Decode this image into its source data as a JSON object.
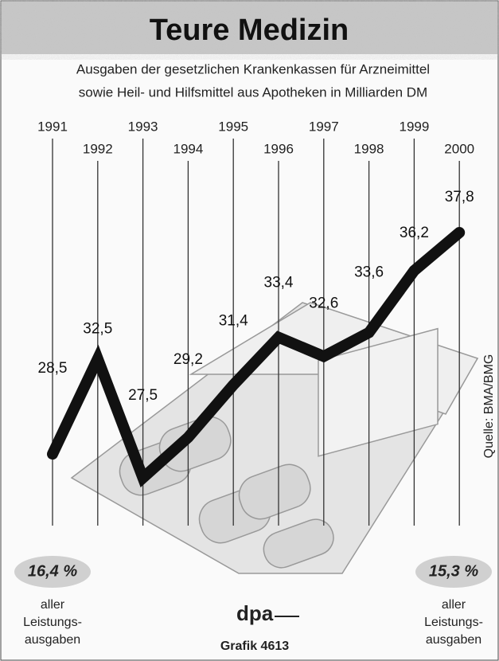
{
  "chart_data": {
    "type": "line",
    "title": "Teure Medizin",
    "subtitle": [
      "Ausgaben der gesetzlichen Krankenkassen für Arzneimittel",
      "sowie Heil- und Hilfsmittel aus Apotheken in Milliarden DM"
    ],
    "categories": [
      "1991",
      "1992",
      "1993",
      "1994",
      "1995",
      "1996",
      "1997",
      "1998",
      "1999",
      "2000"
    ],
    "values": [
      28.5,
      32.5,
      27.5,
      29.2,
      31.4,
      33.4,
      32.6,
      33.6,
      36.2,
      37.8
    ],
    "value_labels": [
      "28,5",
      "32,5",
      "27,5",
      "29,2",
      "31,4",
      "33,4",
      "32,6",
      "33,6",
      "36,2",
      "37,8"
    ],
    "color": "#111111",
    "source": "Quelle: BMA/BMG",
    "annotations": [
      {
        "share": "16,4 %",
        "text": [
          "aller",
          "Leistungs-",
          "ausgaben"
        ]
      },
      {
        "share": "15,3 %",
        "text": [
          "aller",
          "Leistungs-",
          "ausgaben"
        ]
      }
    ],
    "credit": "dpa",
    "graphic": "Grafik 4613"
  }
}
